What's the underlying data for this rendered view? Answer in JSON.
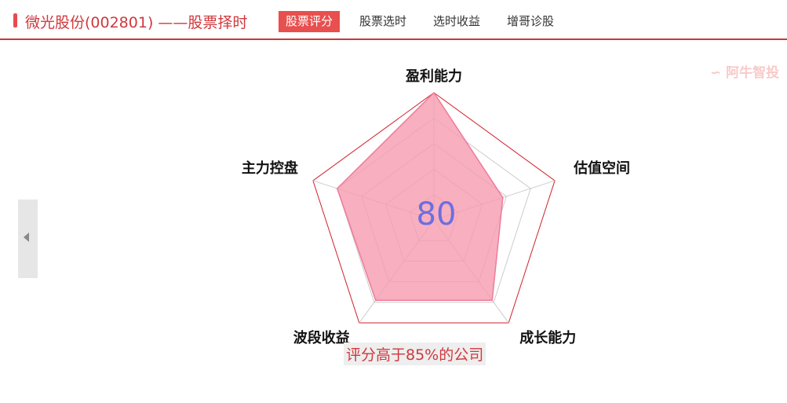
{
  "header": {
    "title": "微光股份(002801) ——股票择时",
    "tabs": [
      {
        "label": "股票评分",
        "active": true
      },
      {
        "label": "股票选时"
      },
      {
        "label": "选时收益"
      },
      {
        "label": "增哥诊股"
      }
    ]
  },
  "watermark": "阿牛智投",
  "chart_data": {
    "type": "radar",
    "axes": [
      "盈利能力",
      "估值空间",
      "成长能力",
      "波段收益",
      "主力控盘"
    ],
    "values": [
      100,
      57,
      78,
      78,
      80
    ],
    "max": 100,
    "rings": 5,
    "center_label": "80",
    "colors": {
      "fill": "#f69bb0",
      "line": "#ee7b9a",
      "outer": "#d0202a",
      "grid": "#cccccc",
      "score": "#6b6fe0"
    }
  },
  "footer": "评分高于85%的公司"
}
